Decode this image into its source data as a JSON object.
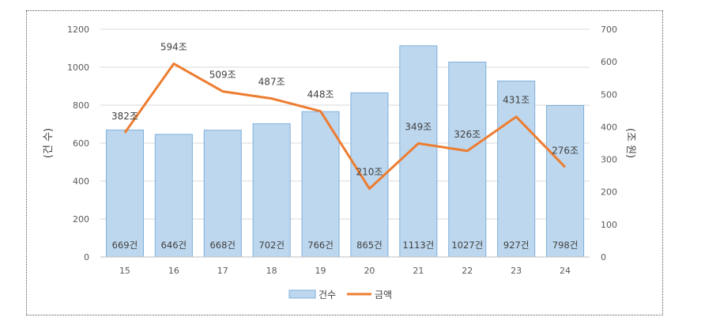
{
  "chart_data": {
    "type": "bar+line",
    "categories": [
      "15",
      "16",
      "17",
      "18",
      "19",
      "20",
      "21",
      "22",
      "23",
      "24"
    ],
    "series": [
      {
        "name": "건수",
        "type": "bar",
        "axis": "left",
        "values": [
          669,
          646,
          668,
          702,
          766,
          865,
          1113,
          1027,
          927,
          798
        ],
        "labels": [
          "669건",
          "646건",
          "668건",
          "702건",
          "766건",
          "865건",
          "1113건",
          "1027건",
          "927건",
          "798건"
        ],
        "color": "#bdd7ee",
        "border_color": "#7fb0dc"
      },
      {
        "name": "금액",
        "type": "line",
        "axis": "right",
        "values": [
          382,
          594,
          509,
          487,
          448,
          210,
          349,
          326,
          431,
          276
        ],
        "labels": [
          "382조",
          "594조",
          "509조",
          "487조",
          "448조",
          "210조",
          "349조",
          "326조",
          "431조",
          "276조"
        ],
        "color": "#ed7d31"
      }
    ],
    "y_left": {
      "label": "(건 수)",
      "range": [
        0,
        1200
      ],
      "ticks": [
        "0",
        "200",
        "400",
        "600",
        "800",
        "1000",
        "1200"
      ]
    },
    "y_right": {
      "label": "(조 원)",
      "range": [
        0,
        700
      ],
      "ticks": [
        "0",
        "100",
        "200",
        "300",
        "400",
        "500",
        "600",
        "700"
      ]
    },
    "grid": true,
    "legend": {
      "position": "bottom"
    }
  }
}
